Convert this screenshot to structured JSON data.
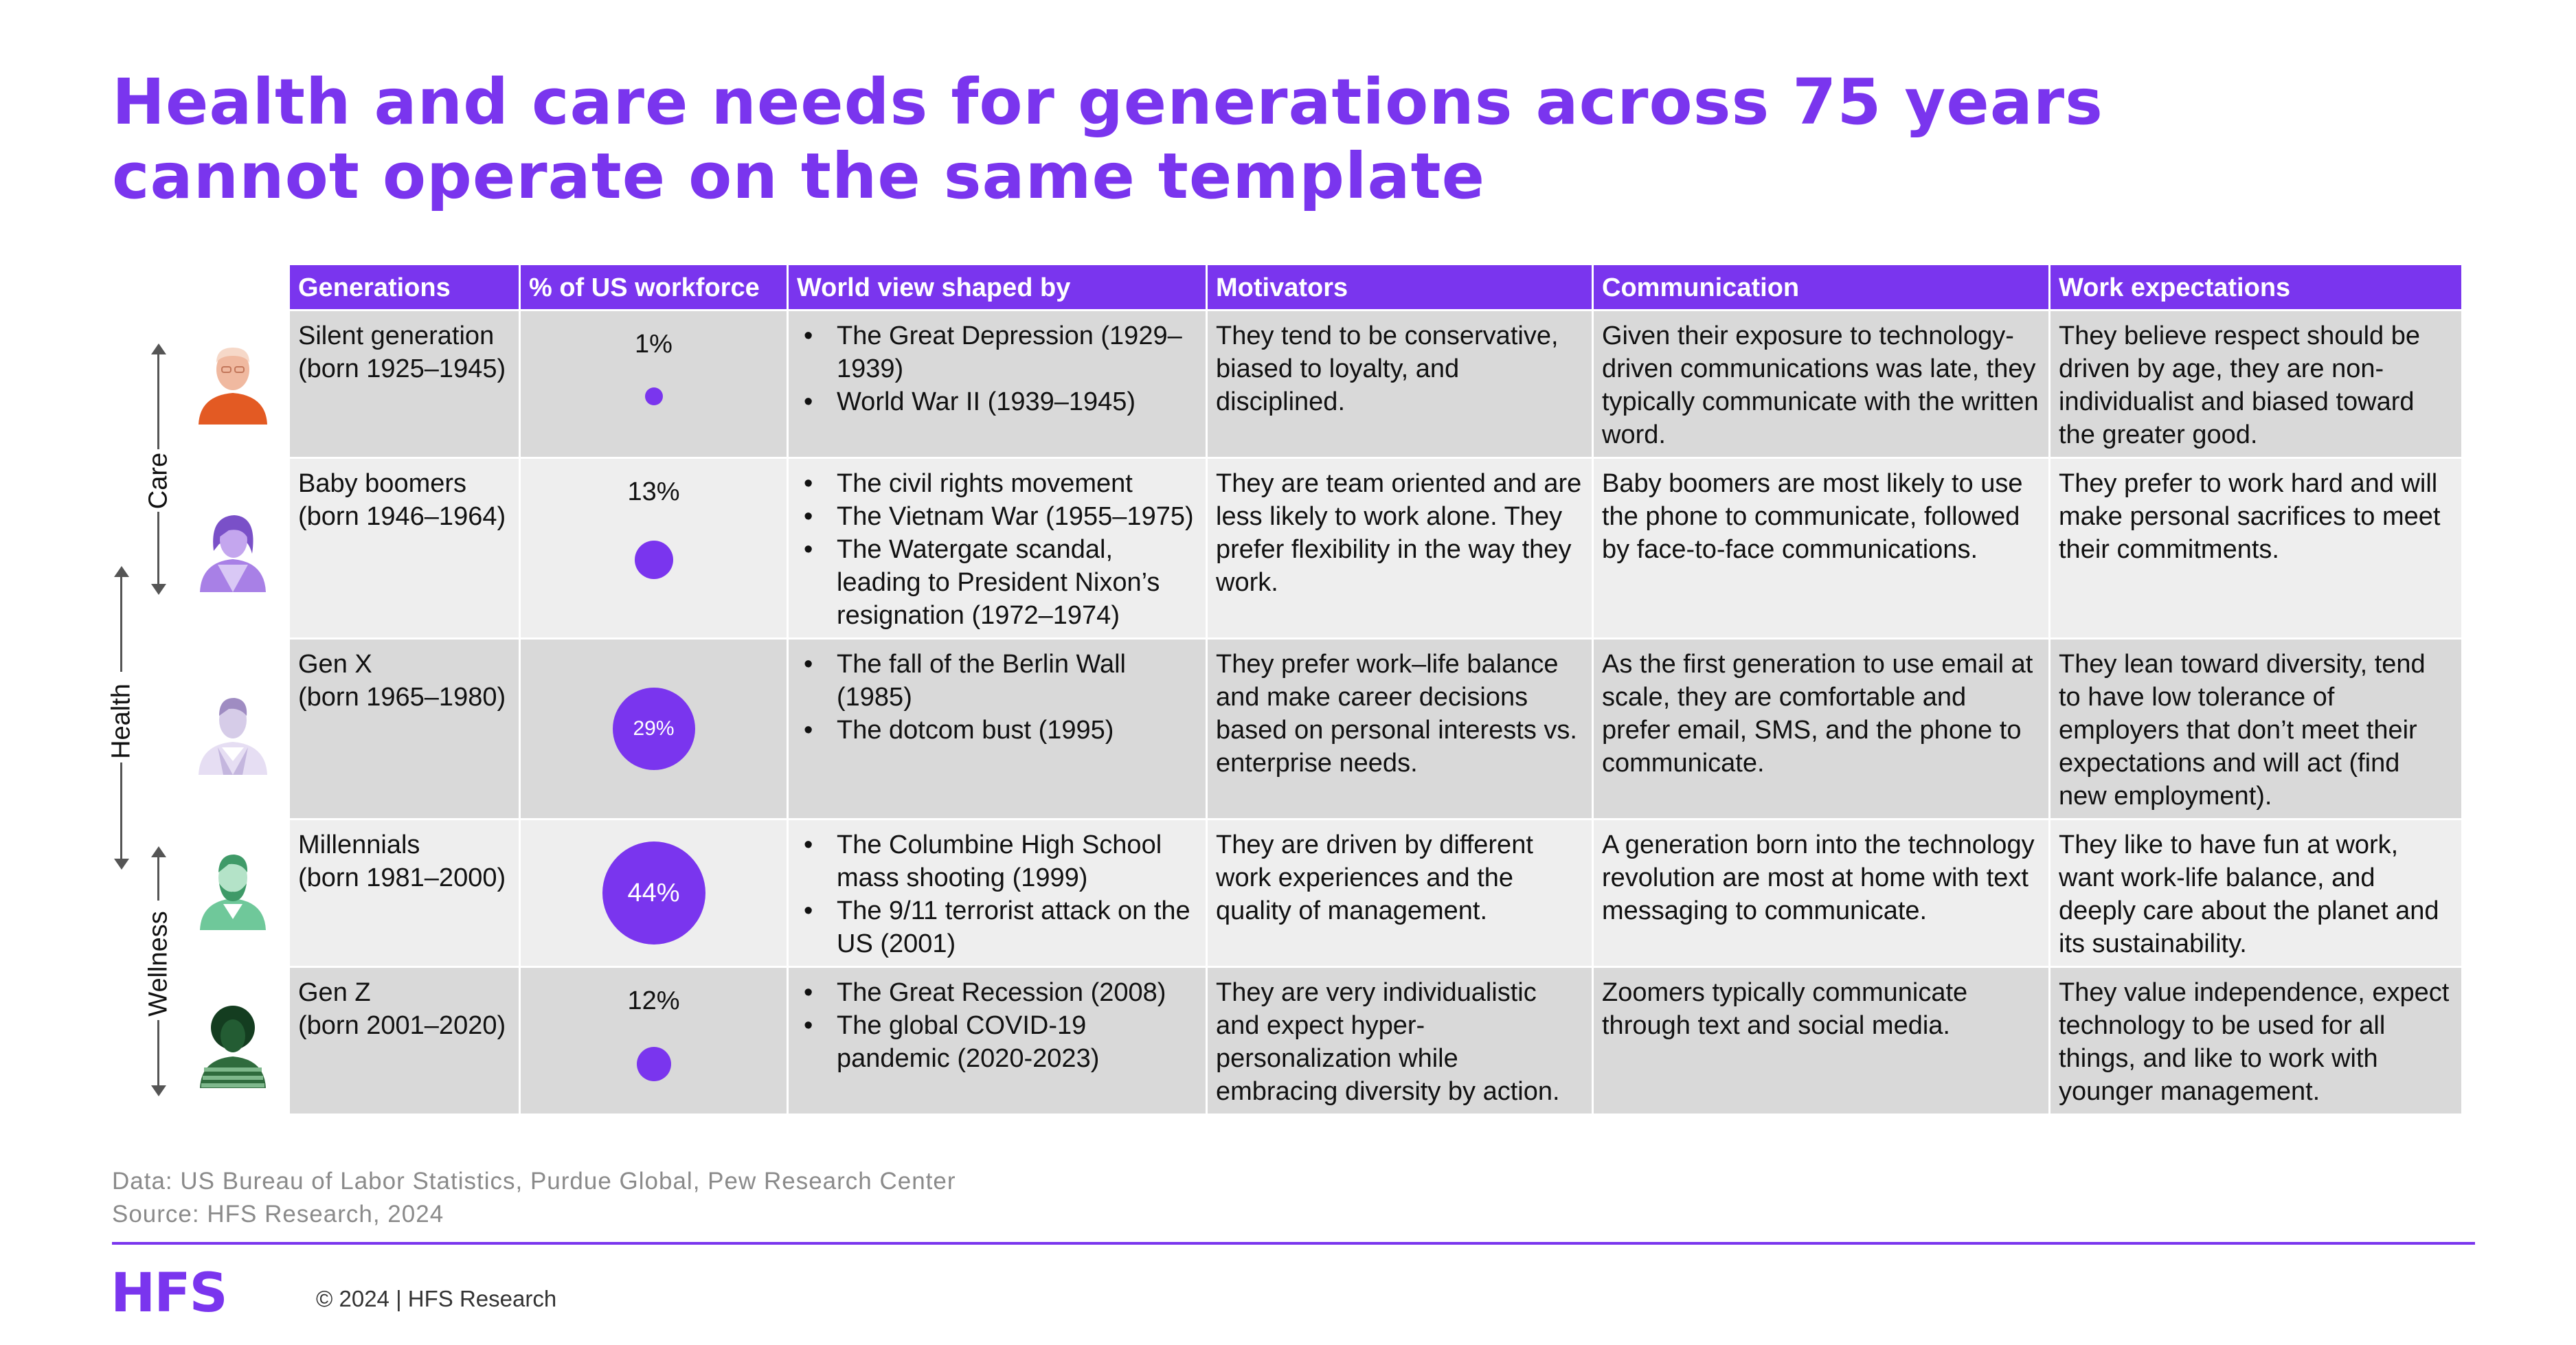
{
  "title": {
    "line1": "Health and care needs for generations across 75 years",
    "line2": "cannot operate on the same template"
  },
  "table": {
    "headers": [
      "Generations",
      "% of US workforce",
      "World view shaped by",
      "Motivators",
      "Communication",
      "Work expectations"
    ],
    "rows": [
      {
        "gen_name": "Silent generation",
        "gen_born": "(born 1925–1945)",
        "pct": "1%",
        "pct_value": 1,
        "worldview": [
          "The Great Depression (1929–1939)",
          "World War II (1939–1945)"
        ],
        "motivators": "They tend to be conservative, biased to loyalty, and disciplined.",
        "communication": "Given their exposure to technology-driven communications was late, they typically communicate with the written word.",
        "expectations": "They believe respect should be driven by age, they are non-individualist and biased toward the greater good."
      },
      {
        "gen_name": "Baby boomers",
        "gen_born": "(born 1946–1964)",
        "pct": "13%",
        "pct_value": 13,
        "worldview": [
          "The civil rights movement",
          "The Vietnam War (1955–1975)",
          "The Watergate scandal, leading to President Nixon’s resignation (1972–1974)"
        ],
        "motivators": "They are team oriented and are less likely to work alone. They prefer flexibility in the way they work.",
        "communication": "Baby boomers are most likely to use the phone to communicate, followed by face-to-face communications.",
        "expectations": "They prefer to work hard and will make personal sacrifices to meet their commitments."
      },
      {
        "gen_name": "Gen X",
        "gen_born": "(born 1965–1980)",
        "pct": "29%",
        "pct_value": 29,
        "worldview": [
          "The fall of the Berlin Wall (1985)",
          "The dotcom bust (1995)"
        ],
        "motivators": "They prefer work–life balance and make career decisions based on personal interests vs. enterprise needs.",
        "communication": "As the first generation to use email at scale, they are comfortable and prefer email, SMS, and the phone to communicate.",
        "expectations": "They lean toward diversity, tend to have low tolerance of employers that don’t meet their expectations and will act (find new employment)."
      },
      {
        "gen_name": "Millennials",
        "gen_born": "(born 1981–2000)",
        "pct": "44%",
        "pct_value": 44,
        "worldview": [
          "The Columbine High School mass shooting (1999)",
          "The 9/11 terrorist attack on the US (2001)"
        ],
        "motivators": "They are driven by different work experiences and the quality of management.",
        "communication": "A generation born into the technology revolution are most at home with text messaging to communicate.",
        "expectations": "They like to have fun at work, want work-life balance, and deeply care about the planet and its sustainability."
      },
      {
        "gen_name": "Gen Z",
        "gen_born": "(born 2001–2020)",
        "pct": "12%",
        "pct_value": 12,
        "worldview": [
          "The Great Recession (2008)",
          "The global COVID-19 pandemic (2020-2023)"
        ],
        "motivators": "They are very individualistic and expect hyper-personalization while embracing diversity by action.",
        "communication": "Zoomers typically communicate through text and social media.",
        "expectations": "They value independence, expect technology to be used for all things, and like to work with younger management."
      }
    ]
  },
  "axis": {
    "care": "Care",
    "health": "Health",
    "wellness": "Wellness"
  },
  "footer": {
    "data_note": "Data: US Bureau of Labor Statistics, Purdue Global, Pew Research Center",
    "source_note": "Source: HFS Research, 2024",
    "logo": "HFS",
    "copyright": "© 2024 | HFS Research"
  },
  "colors": {
    "accent": "#7a35ee",
    "silent_avatar": "#e35a23",
    "boomer_avatar": "#a880e6",
    "genx_avatar": "#c4b6de",
    "millennial_avatar": "#6fc89a",
    "genz_avatar": "#2f6b3d"
  },
  "icons": [
    "silent-generation-avatar-icon",
    "baby-boomer-avatar-icon",
    "gen-x-avatar-icon",
    "millennial-avatar-icon",
    "gen-z-avatar-icon"
  ]
}
